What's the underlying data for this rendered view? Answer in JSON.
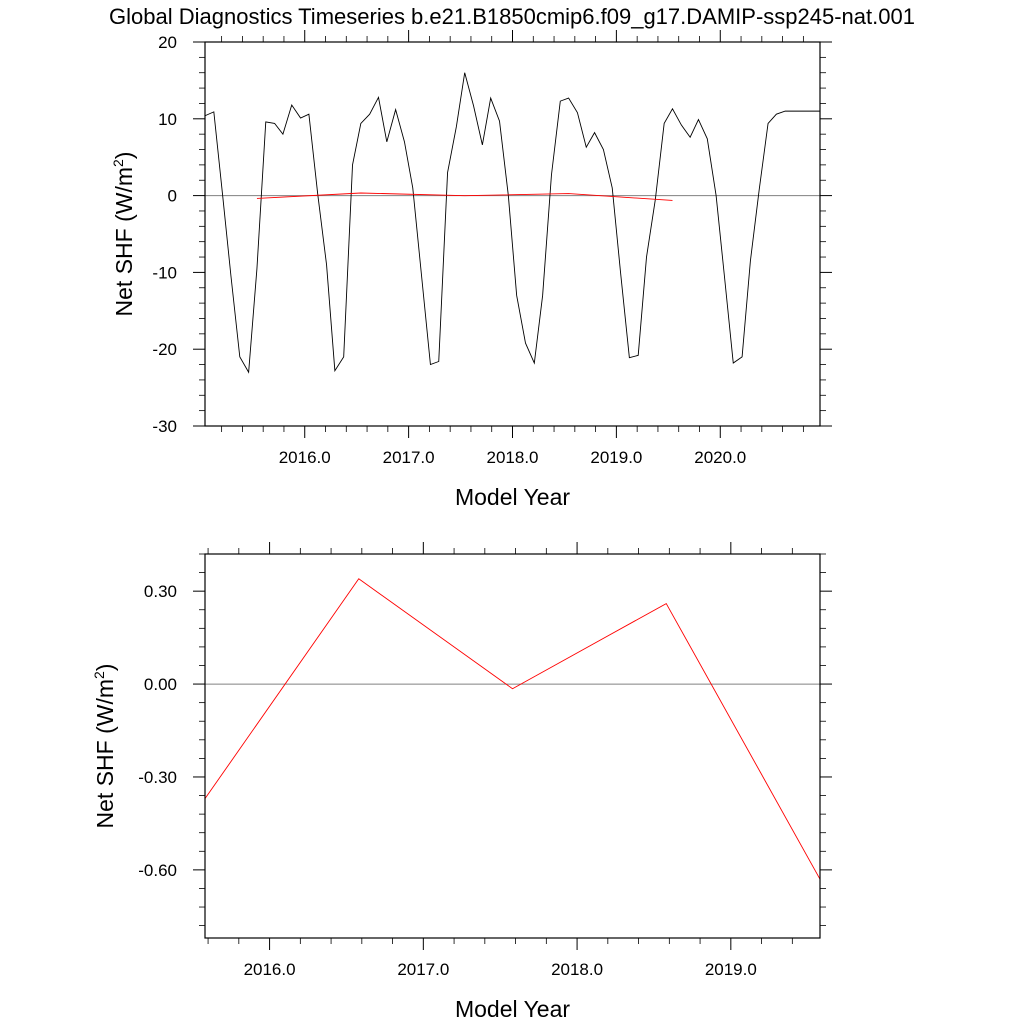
{
  "page": {
    "title": "Global Diagnostics Timeseries b.e21.B1850cmip6.f09_g17.DAMIP-ssp245-nat.001"
  },
  "colors": {
    "monthly_series": "#000000",
    "annual_series": "#ff0000",
    "zero_line": "#808080",
    "frame": "#000000"
  },
  "chart_data": [
    {
      "type": "line",
      "xlabel": "Model Year",
      "ylabel": "Net SHF (W/m",
      "ylabel_sup": "2",
      "ylabel_close": ")",
      "xlim": [
        2015.04,
        2020.96
      ],
      "ylim": [
        -30,
        20
      ],
      "xticks": [
        2016,
        2017,
        2018,
        2019,
        2020
      ],
      "xtick_labels": [
        "2016.0",
        "2017.0",
        "2018.0",
        "2019.0",
        "2020.0"
      ],
      "yticks": [
        -30,
        -20,
        -10,
        0,
        10,
        20
      ],
      "ytick_labels": [
        "-30",
        "-20",
        "-10",
        "0",
        "10",
        "20"
      ],
      "reference_line": 0,
      "series": [
        {
          "role": "monthly",
          "x": [
            2015.04,
            2015.125,
            2015.21,
            2015.29,
            2015.375,
            2015.46,
            2015.54,
            2015.625,
            2015.71,
            2015.79,
            2015.875,
            2015.96,
            2016.04,
            2016.125,
            2016.21,
            2016.29,
            2016.375,
            2016.46,
            2016.54,
            2016.625,
            2016.71,
            2016.79,
            2016.875,
            2016.96,
            2017.04,
            2017.125,
            2017.21,
            2017.29,
            2017.375,
            2017.46,
            2017.54,
            2017.625,
            2017.71,
            2017.79,
            2017.875,
            2017.96,
            2018.04,
            2018.125,
            2018.21,
            2018.29,
            2018.375,
            2018.46,
            2018.54,
            2018.625,
            2018.71,
            2018.79,
            2018.875,
            2018.96,
            2019.04,
            2019.125,
            2019.21,
            2019.29,
            2019.375,
            2019.46,
            2019.54,
            2019.625,
            2019.71,
            2019.79,
            2019.875,
            2019.96,
            2020.04,
            2020.125,
            2020.21,
            2020.29,
            2020.375,
            2020.46,
            2020.54,
            2020.625,
            2020.71,
            2020.79,
            2020.875,
            2020.96
          ],
          "y": [
            10.4,
            10.9,
            0.0,
            -10.5,
            -21.0,
            -23.0,
            -9.5,
            9.6,
            9.4,
            8.0,
            11.8,
            10.1,
            10.6,
            0.2,
            -9.0,
            -22.8,
            -21.0,
            4.0,
            9.4,
            10.6,
            12.8,
            7.0,
            11.2,
            7.0,
            1.0,
            -10.5,
            -22.0,
            -21.6,
            3.0,
            9.0,
            16.0,
            11.7,
            6.6,
            12.7,
            9.7,
            0.0,
            -13.0,
            -19.2,
            -21.8,
            -13.0,
            2.7,
            12.3,
            12.7,
            10.8,
            6.3,
            8.2,
            6.0,
            1.0,
            -10.0,
            -21.1,
            -20.8,
            -8.0,
            -0.5,
            9.4,
            11.3,
            9.2,
            7.6,
            9.9,
            7.4,
            0.0,
            -10.5,
            -21.8,
            -21.0,
            -8.5,
            0.8,
            9.4,
            10.6,
            11.0,
            11.0,
            11.0,
            11.0,
            11.0
          ]
        },
        {
          "role": "annual-mean",
          "x": [
            2015.54,
            2016.54,
            2017.54,
            2018.54,
            2019.54
          ],
          "y": [
            -0.37,
            0.34,
            -0.01,
            0.26,
            -0.63
          ]
        }
      ]
    },
    {
      "type": "line",
      "xlabel": "Model Year",
      "ylabel": "Net SHF (W/m",
      "ylabel_sup": "2",
      "ylabel_close": ")",
      "xlim": [
        2015.58,
        2019.58
      ],
      "ylim": [
        -0.82,
        0.42
      ],
      "xticks": [
        2016,
        2017,
        2018,
        2019
      ],
      "xtick_labels": [
        "2016.0",
        "2017.0",
        "2018.0",
        "2019.0"
      ],
      "yticks": [
        -0.6,
        -0.3,
        0.0,
        0.3
      ],
      "ytick_labels": [
        "-0.60",
        "-0.30",
        "0.00",
        "0.30"
      ],
      "reference_line": 0,
      "series": [
        {
          "role": "annual-mean",
          "x": [
            2015.58,
            2016.58,
            2017.58,
            2018.58,
            2019.58
          ],
          "y": [
            -0.37,
            0.34,
            -0.015,
            0.26,
            -0.63
          ]
        }
      ]
    }
  ]
}
